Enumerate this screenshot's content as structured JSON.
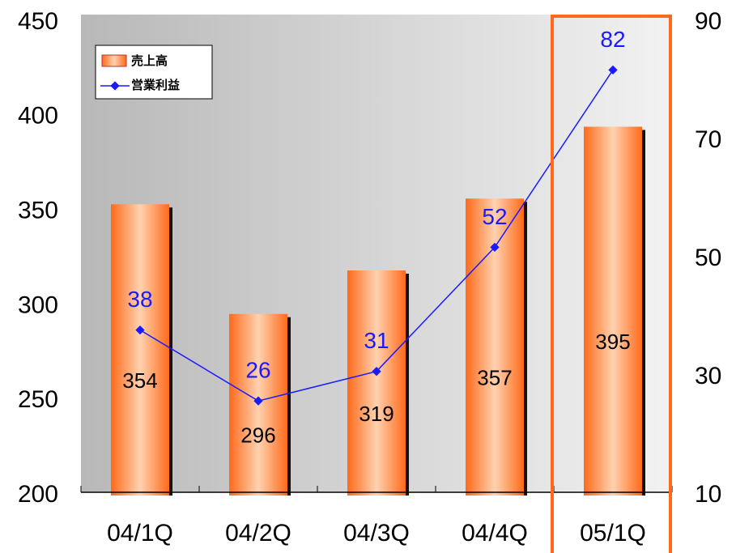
{
  "chart_data": {
    "type": "bar_line",
    "categories": [
      "04/1Q",
      "04/2Q",
      "04/3Q",
      "04/4Q",
      "05/1Q"
    ],
    "series": [
      {
        "name": "売上高",
        "color": "#ff7a33",
        "values": [
          354,
          296,
          319,
          357,
          395
        ]
      },
      {
        "name": "営業利益",
        "color": "#1a1aff",
        "values": [
          38,
          26,
          31,
          52,
          82
        ],
        "axis": "y2"
      }
    ],
    "ylim": [
      200,
      450
    ],
    "yticks": [
      200,
      250,
      300,
      350,
      400,
      450
    ],
    "y2lim": [
      10,
      90
    ],
    "y2ticks": [
      10,
      30,
      50,
      70,
      90
    ],
    "legend": "upper left"
  }
}
